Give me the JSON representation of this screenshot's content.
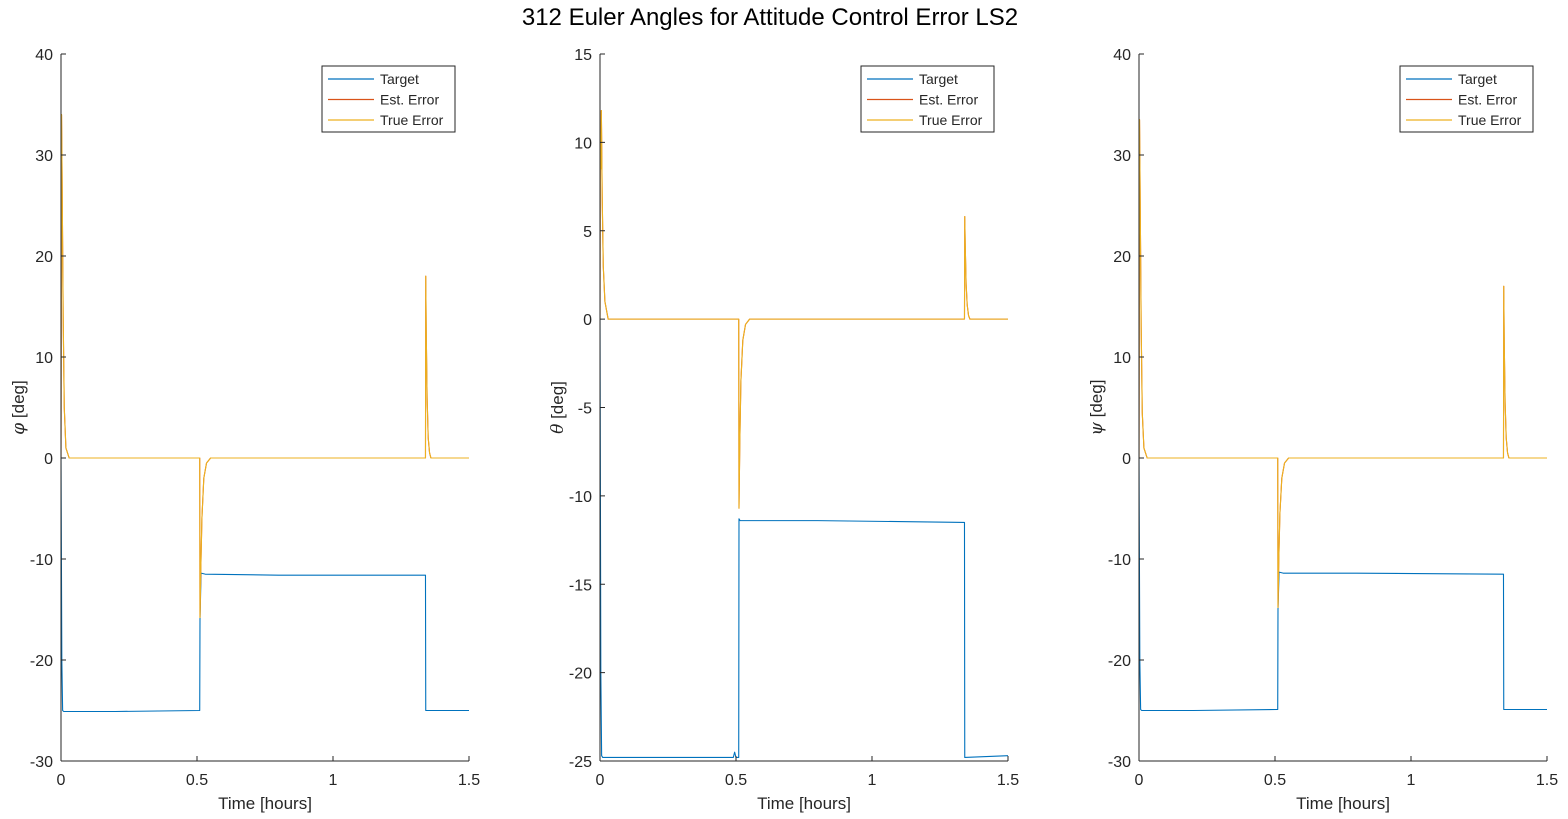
{
  "figure": {
    "title": "312 Euler Angles for Attitude Control Error LS2",
    "colors": {
      "target": "#0072BD",
      "est_error": "#D95319",
      "true_error": "#EDB120",
      "axis": "#262626"
    }
  },
  "chart_data": [
    {
      "type": "line",
      "xlabel": "Time [hours]",
      "ylabel_symbol": "φ",
      "ylabel_unit": " [deg]",
      "xlim": [
        0,
        1.5
      ],
      "ylim": [
        -30,
        40
      ],
      "xticks": [
        0,
        0.5,
        1,
        1.5
      ],
      "xtick_labels": [
        "0",
        "0.5",
        "1",
        "1.5"
      ],
      "yticks": [
        -30,
        -20,
        -10,
        0,
        10,
        20,
        30,
        40
      ],
      "ytick_labels": [
        "-30",
        "-20",
        "-10",
        "0",
        "10",
        "20",
        "30",
        "40"
      ],
      "legend": {
        "position": "top-right"
      },
      "series": [
        {
          "name": "Target",
          "color": "#0072BD",
          "x": [
            0,
            0.003,
            0.006,
            0.01,
            0.2,
            0.51,
            0.511,
            0.515,
            0.53,
            0.8,
            1.34,
            1.341,
            1.5
          ],
          "y": [
            0,
            -20,
            -25,
            -25.1,
            -25.1,
            -25,
            -16,
            -11.4,
            -11.5,
            -11.6,
            -11.6,
            -25,
            -25
          ]
        },
        {
          "name": "Est. Error",
          "color": "#D95319",
          "x": [
            0,
            0.002,
            0.004,
            0.008,
            0.012,
            0.018,
            0.03,
            0.1,
            0.51,
            0.511,
            0.514,
            0.518,
            0.525,
            0.535,
            0.55,
            1.34,
            1.341,
            1.343,
            1.346,
            1.35,
            1.355,
            1.36,
            1.5
          ],
          "y": [
            0,
            34,
            28,
            14,
            5,
            1,
            0,
            0,
            0,
            -15.8,
            -11,
            -6,
            -2,
            -0.5,
            0,
            0,
            18,
            12,
            6,
            2,
            0.5,
            0,
            0
          ]
        },
        {
          "name": "True Error",
          "color": "#EDB120",
          "x": [
            0,
            0.002,
            0.004,
            0.008,
            0.012,
            0.018,
            0.03,
            0.1,
            0.51,
            0.511,
            0.514,
            0.518,
            0.525,
            0.535,
            0.55,
            1.34,
            1.341,
            1.343,
            1.346,
            1.35,
            1.355,
            1.36,
            1.5
          ],
          "y": [
            0,
            34,
            28,
            14,
            5,
            1,
            0,
            0,
            0,
            -15.8,
            -11,
            -6,
            -2,
            -0.5,
            0,
            0,
            18,
            12,
            6,
            2,
            0.5,
            0,
            0
          ]
        }
      ]
    },
    {
      "type": "line",
      "xlabel": "Time [hours]",
      "ylabel_symbol": "θ",
      "ylabel_unit": " [deg]",
      "xlim": [
        0,
        1.5
      ],
      "ylim": [
        -25,
        15
      ],
      "xticks": [
        0,
        0.5,
        1,
        1.5
      ],
      "xtick_labels": [
        "0",
        "0.5",
        "1",
        "1.5"
      ],
      "yticks": [
        -25,
        -20,
        -15,
        -10,
        -5,
        0,
        5,
        10,
        15
      ],
      "ytick_labels": [
        "-25",
        "-20",
        "-15",
        "-10",
        "-5",
        "0",
        "5",
        "10",
        "15"
      ],
      "legend": {
        "position": "top-right"
      },
      "series": [
        {
          "name": "Target",
          "color": "#0072BD",
          "x": [
            0,
            0.003,
            0.006,
            0.01,
            0.2,
            0.49,
            0.495,
            0.5,
            0.51,
            0.511,
            0.515,
            0.8,
            1.34,
            1.341,
            1.5
          ],
          "y": [
            0,
            -20,
            -24.7,
            -24.8,
            -24.8,
            -24.8,
            -24.5,
            -24.8,
            -24.8,
            -11.3,
            -11.4,
            -11.4,
            -11.5,
            -24.8,
            -24.7
          ]
        },
        {
          "name": "Est. Error",
          "color": "#D95319",
          "x": [
            0,
            0.001,
            0.003,
            0.005,
            0.008,
            0.012,
            0.018,
            0.03,
            0.1,
            0.51,
            0.511,
            0.514,
            0.518,
            0.525,
            0.535,
            0.55,
            1.34,
            1.341,
            1.343,
            1.346,
            1.35,
            1.355,
            1.36,
            1.5
          ],
          "y": [
            0,
            10.5,
            8.5,
            11.8,
            7,
            3,
            1,
            0,
            0,
            0,
            -10.7,
            -7,
            -3.5,
            -1.2,
            -0.3,
            0,
            0,
            5.8,
            4,
            2,
            0.8,
            0.2,
            0,
            0
          ]
        },
        {
          "name": "True Error",
          "color": "#EDB120",
          "x": [
            0,
            0.001,
            0.003,
            0.005,
            0.008,
            0.012,
            0.018,
            0.03,
            0.1,
            0.51,
            0.511,
            0.514,
            0.518,
            0.525,
            0.535,
            0.55,
            1.34,
            1.341,
            1.343,
            1.346,
            1.35,
            1.355,
            1.36,
            1.5
          ],
          "y": [
            0,
            10.5,
            8.5,
            11.8,
            7,
            3,
            1,
            0,
            0,
            0,
            -10.7,
            -7,
            -3.5,
            -1.2,
            -0.3,
            0,
            0,
            5.8,
            4,
            2,
            0.8,
            0.2,
            0,
            0
          ]
        }
      ]
    },
    {
      "type": "line",
      "xlabel": "Time [hours]",
      "ylabel_symbol": "ψ",
      "ylabel_unit": " [deg]",
      "xlim": [
        0,
        1.5
      ],
      "ylim": [
        -30,
        40
      ],
      "xticks": [
        0,
        0.5,
        1,
        1.5
      ],
      "xtick_labels": [
        "0",
        "0.5",
        "1",
        "1.5"
      ],
      "yticks": [
        -30,
        -20,
        -10,
        0,
        10,
        20,
        30,
        40
      ],
      "ytick_labels": [
        "-30",
        "-20",
        "-10",
        "0",
        "10",
        "20",
        "30",
        "40"
      ],
      "legend": {
        "position": "top-right"
      },
      "series": [
        {
          "name": "Target",
          "color": "#0072BD",
          "x": [
            0,
            0.003,
            0.006,
            0.01,
            0.2,
            0.51,
            0.511,
            0.515,
            0.53,
            0.8,
            1.34,
            1.341,
            1.5
          ],
          "y": [
            0,
            -20,
            -24.9,
            -25,
            -25,
            -24.9,
            -15,
            -11.3,
            -11.4,
            -11.4,
            -11.5,
            -24.9,
            -24.9
          ]
        },
        {
          "name": "Est. Error",
          "color": "#D95319",
          "x": [
            0,
            0.002,
            0.004,
            0.008,
            0.012,
            0.018,
            0.03,
            0.1,
            0.51,
            0.511,
            0.514,
            0.518,
            0.525,
            0.535,
            0.55,
            1.34,
            1.341,
            1.343,
            1.346,
            1.35,
            1.355,
            1.36,
            1.5
          ],
          "y": [
            0,
            33.5,
            27,
            13,
            4.5,
            1,
            0,
            0,
            0,
            -14.8,
            -10,
            -5.5,
            -2,
            -0.5,
            0,
            0,
            17,
            11,
            5.5,
            2,
            0.5,
            0,
            0
          ]
        },
        {
          "name": "True Error",
          "color": "#EDB120",
          "x": [
            0,
            0.002,
            0.004,
            0.008,
            0.012,
            0.018,
            0.03,
            0.1,
            0.51,
            0.511,
            0.514,
            0.518,
            0.525,
            0.535,
            0.55,
            1.34,
            1.341,
            1.343,
            1.346,
            1.35,
            1.355,
            1.36,
            1.5
          ],
          "y": [
            0,
            33.5,
            27,
            13,
            4.5,
            1,
            0,
            0,
            0,
            -14.8,
            -10,
            -5.5,
            -2,
            -0.5,
            0,
            0,
            17,
            11,
            5.5,
            2,
            0.5,
            0,
            0
          ]
        }
      ]
    }
  ]
}
